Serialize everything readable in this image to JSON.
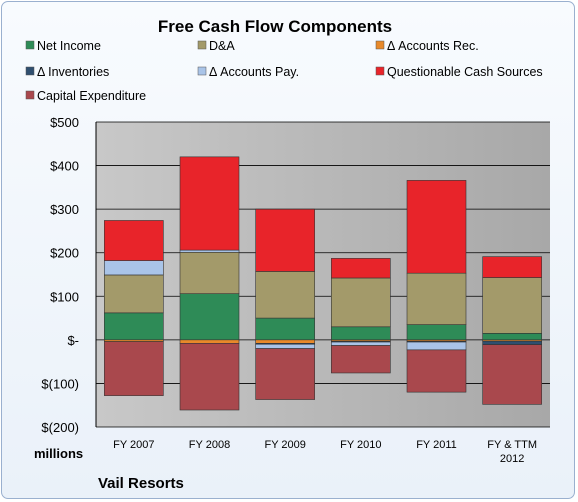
{
  "chart_data": {
    "type": "bar",
    "stacked": true,
    "title": "Free Cash Flow Components",
    "categories": [
      "FY 2007",
      "FY 2008",
      "FY 2009",
      "FY 2010",
      "FY 2011",
      "FY & TTM\n2012"
    ],
    "unit_label": "millions",
    "company": "Vail Resorts",
    "ylim": [
      -200,
      500
    ],
    "yticks": [
      500,
      400,
      300,
      200,
      100,
      0,
      -100,
      -200
    ],
    "ytick_labels": [
      "$500",
      "$400",
      "$300",
      "$200",
      "$100",
      "$-",
      "$(100)",
      "$(200)"
    ],
    "grid": true,
    "legend_position": "top",
    "series": [
      {
        "name": "Net Income",
        "color": "#2e8b57",
        "values": [
          62,
          106,
          50,
          30,
          35,
          15
        ]
      },
      {
        "name": "D&A",
        "color": "#a39a6a",
        "values": [
          87,
          95,
          107,
          112,
          118,
          128
        ]
      },
      {
        "name": "Δ Accounts Rec.",
        "color": "#e8892a",
        "values": [
          -4,
          -8,
          -8,
          -3,
          -3,
          -3
        ]
      },
      {
        "name": "Δ Inventories",
        "color": "#2f4f6f",
        "values": [
          0,
          0,
          -2,
          -2,
          -2,
          -8
        ]
      },
      {
        "name": "Δ Accounts Pay.",
        "color": "#a9c4e8",
        "values": [
          33,
          5,
          -10,
          -8,
          -18,
          0
        ]
      },
      {
        "name": "Questionable Cash Sources",
        "color": "#e8242a",
        "values": [
          92,
          214,
          143,
          45,
          213,
          48
        ]
      },
      {
        "name": "Capital Expenditure",
        "color": "#a9484d",
        "values": [
          -124,
          -153,
          -117,
          -63,
          -97,
          -137
        ]
      }
    ]
  }
}
